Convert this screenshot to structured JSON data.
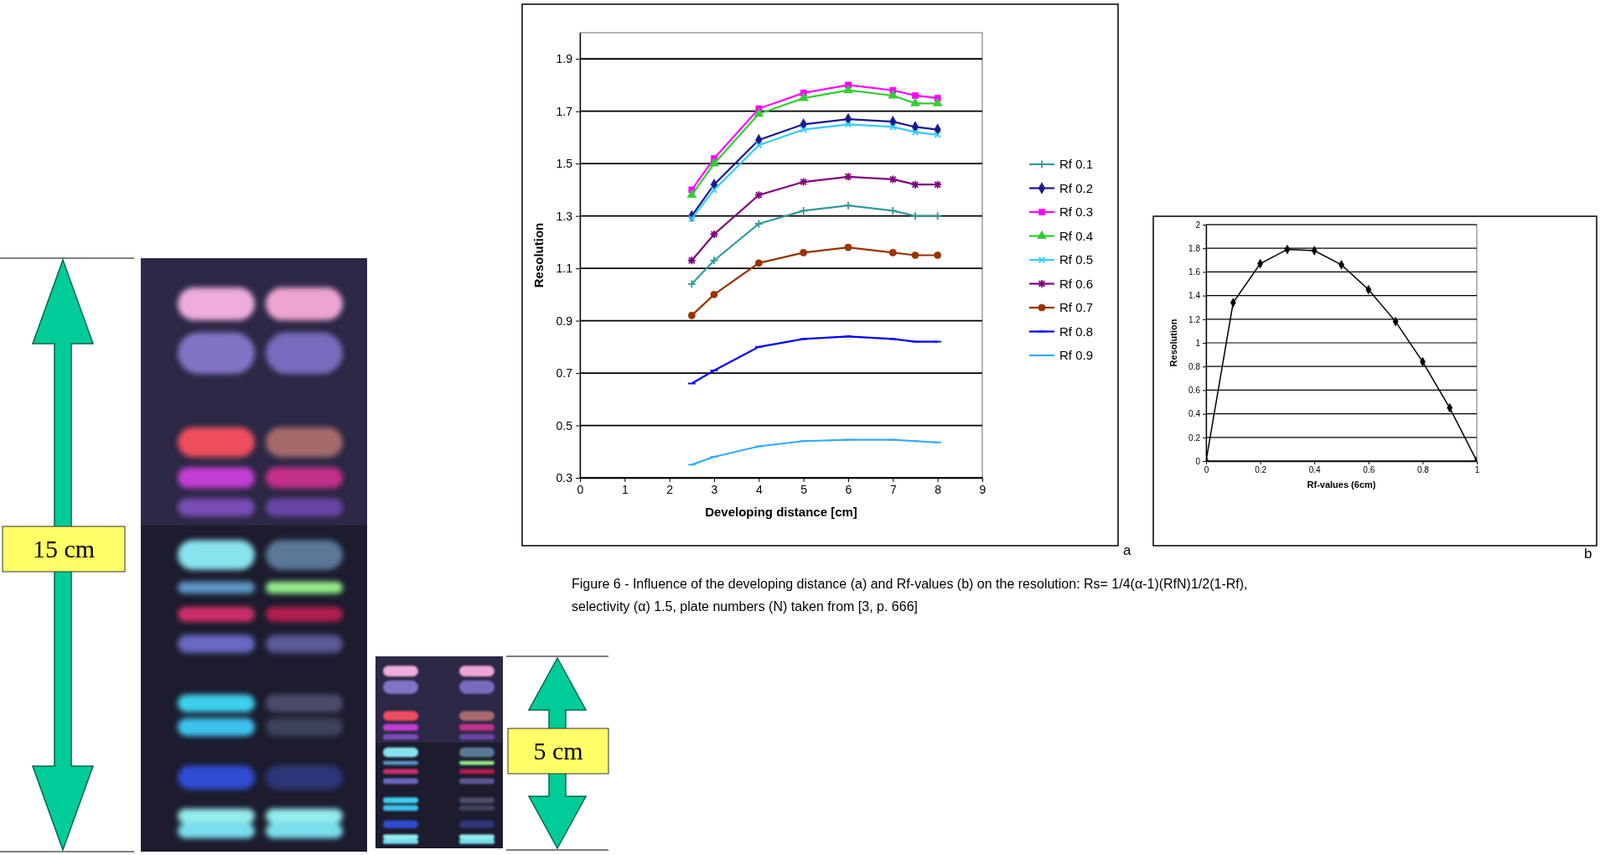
{
  "chart_data": [
    {
      "type": "line",
      "panel_label": "a",
      "x": [
        2.5,
        3,
        4,
        5,
        6,
        7,
        7.5,
        8
      ],
      "xlabel": "Developing distance [cm]",
      "ylabel": "Resolution",
      "xlim": [
        0,
        9
      ],
      "xticks": [
        0,
        1,
        2,
        3,
        4,
        5,
        6,
        7,
        8,
        9
      ],
      "ylim": [
        0.3,
        2.0
      ],
      "yticks": [
        0.3,
        0.5,
        0.7,
        0.9,
        1.1,
        1.3,
        1.5,
        1.7,
        1.9
      ],
      "grid": true,
      "legend": "right",
      "series": [
        {
          "name": "Rf 0.1",
          "color": "#339999",
          "marker": "plus",
          "values": [
            1.04,
            1.13,
            1.27,
            1.32,
            1.34,
            1.32,
            1.3,
            1.3
          ]
        },
        {
          "name": "Rf 0.2",
          "color": "#1a1a8c",
          "marker": "diamond",
          "values": [
            1.3,
            1.42,
            1.59,
            1.65,
            1.67,
            1.66,
            1.64,
            1.63
          ]
        },
        {
          "name": "Rf 0.3",
          "color": "#ff00ff",
          "marker": "square",
          "values": [
            1.4,
            1.52,
            1.71,
            1.77,
            1.8,
            1.78,
            1.76,
            1.75
          ]
        },
        {
          "name": "Rf 0.4",
          "color": "#33cc33",
          "marker": "triangle",
          "values": [
            1.38,
            1.5,
            1.69,
            1.75,
            1.78,
            1.76,
            1.73,
            1.73
          ]
        },
        {
          "name": "Rf 0.5",
          "color": "#33ccff",
          "marker": "x",
          "values": [
            1.29,
            1.4,
            1.57,
            1.63,
            1.65,
            1.64,
            1.62,
            1.61
          ]
        },
        {
          "name": "Rf 0.6",
          "color": "#800080",
          "marker": "asterisk",
          "values": [
            1.13,
            1.23,
            1.38,
            1.43,
            1.45,
            1.44,
            1.42,
            1.42
          ]
        },
        {
          "name": "Rf 0.7",
          "color": "#993300",
          "marker": "circle",
          "values": [
            0.92,
            1.0,
            1.12,
            1.16,
            1.18,
            1.16,
            1.15,
            1.15
          ]
        },
        {
          "name": "Rf 0.8",
          "color": "#0000ff",
          "marker": "dash",
          "values": [
            0.66,
            0.71,
            0.8,
            0.83,
            0.84,
            0.83,
            0.82,
            0.82
          ]
        },
        {
          "name": "Rf 0.9",
          "color": "#33aaff",
          "marker": "dash",
          "values": [
            0.35,
            0.38,
            0.42,
            0.44,
            0.445,
            0.445,
            0.44,
            0.435
          ]
        }
      ]
    },
    {
      "type": "line",
      "panel_label": "b",
      "x": [
        0,
        0.1,
        0.2,
        0.3,
        0.4,
        0.5,
        0.6,
        0.7,
        0.8,
        0.9,
        1
      ],
      "xlabel": "Rf-values (6cm)",
      "ylabel": "Resolution",
      "xlim": [
        0,
        1
      ],
      "xticks": [
        0,
        0.2,
        0.4,
        0.6,
        0.8,
        1
      ],
      "ylim": [
        0,
        2
      ],
      "yticks": [
        0,
        0.2,
        0.4,
        0.6,
        0.8,
        1,
        1.2,
        1.4,
        1.6,
        1.8,
        2
      ],
      "grid": true,
      "series": [
        {
          "color": "#000000",
          "marker": "diamond",
          "values": [
            0,
            1.34,
            1.67,
            1.79,
            1.78,
            1.66,
            1.45,
            1.18,
            0.84,
            0.45,
            0
          ]
        }
      ]
    }
  ],
  "plate_labels": [
    "15 cm",
    "5 cm"
  ],
  "caption": [
    "Figure 6 - Influence of the developing distance (a) and Rf-values (b) on the resolution: Rs= 1/4(α-1)(RfN)1/2(1-Rf),",
    "selectivity (α) 1.5, plate numbers (N) taken from [3, p. 666]"
  ]
}
